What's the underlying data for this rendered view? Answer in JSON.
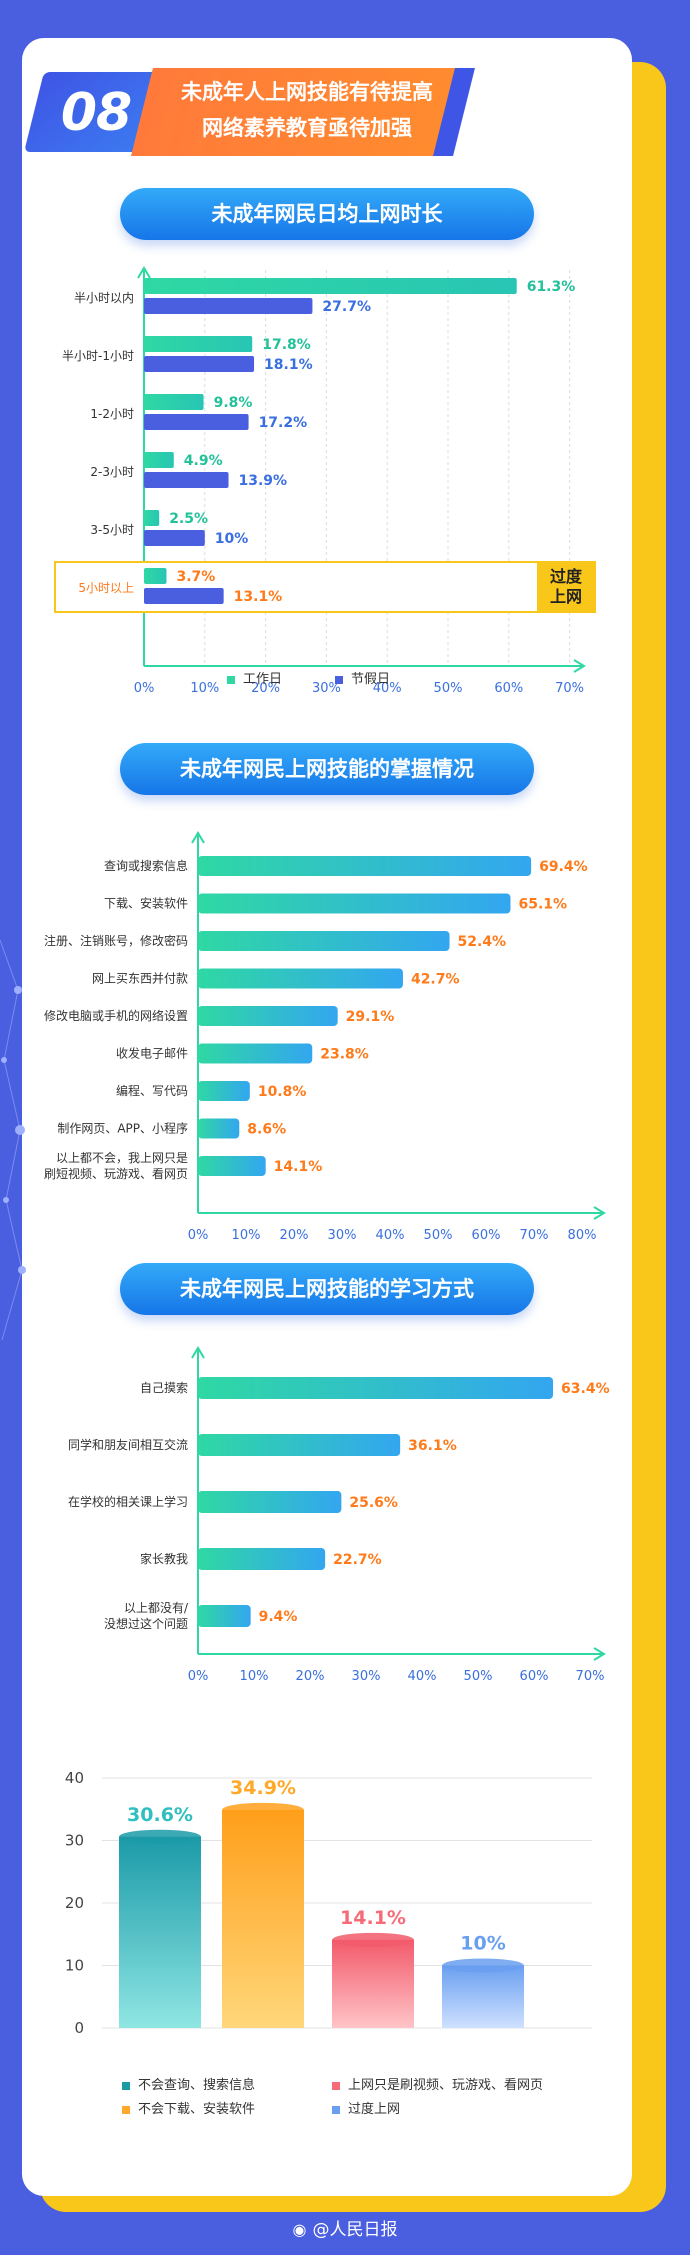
{
  "header": {
    "number": "08",
    "title_line1": "未成年人上网技能有待提高",
    "title_line2": "网络素养教育亟待加强"
  },
  "colors": {
    "green": "#2fd8a3",
    "blue": "#4a5ee0",
    "orange": "#ff8a1a",
    "accent": "#33b5f5"
  },
  "chart_data": [
    {
      "type": "bar",
      "orientation": "horizontal",
      "title": "未成年网民日均上网时长",
      "categories": [
        "半小时以内",
        "半小时-1小时",
        "1-2小时",
        "2-3小时",
        "3-5小时",
        "5小时以上"
      ],
      "series": [
        {
          "name": "工作日",
          "values": [
            61.3,
            17.8,
            9.8,
            4.9,
            2.5,
            3.7
          ],
          "labels": [
            "61.3%",
            "17.8%",
            "9.8%",
            "4.9%",
            "2.5%",
            "3.7%"
          ]
        },
        {
          "name": "节假日",
          "values": [
            27.7,
            18.1,
            17.2,
            13.9,
            10,
            13.1
          ],
          "labels": [
            "27.7%",
            "18.1%",
            "17.2%",
            "13.9%",
            "10%",
            "13.1%"
          ]
        }
      ],
      "xticks": [
        "0%",
        "10%",
        "20%",
        "30%",
        "40%",
        "50%",
        "60%",
        "70%"
      ],
      "xlim": [
        0,
        70
      ],
      "highlight": {
        "category": "5小时以上",
        "tag_line1": "过度",
        "tag_line2": "上网"
      }
    },
    {
      "type": "bar",
      "orientation": "horizontal",
      "title": "未成年网民上网技能的掌握情况",
      "categories": [
        "查询或搜索信息",
        "下载、安装软件",
        "注册、注销账号，修改密码",
        "网上买东西并付款",
        "修改电脑或手机的网络设置",
        "收发电子邮件",
        "编程、写代码",
        "制作网页、APP、小程序",
        [
          "以上都不会，我上网只是",
          "刷短视频、玩游戏、看网页"
        ]
      ],
      "values": [
        69.4,
        65.1,
        52.4,
        42.7,
        29.1,
        23.8,
        10.8,
        8.6,
        14.1
      ],
      "labels": [
        "69.4%",
        "65.1%",
        "52.4%",
        "42.7%",
        "29.1%",
        "23.8%",
        "10.8%",
        "8.6%",
        "14.1%"
      ],
      "xticks": [
        "0%",
        "10%",
        "20%",
        "30%",
        "40%",
        "50%",
        "60%",
        "70%",
        "80%"
      ],
      "xlim": [
        0,
        80
      ]
    },
    {
      "type": "bar",
      "orientation": "horizontal",
      "title": "未成年网民上网技能的学习方式",
      "categories": [
        "自己摸索",
        "同学和朋友间相互交流",
        "在学校的相关课上学习",
        "家长教我",
        [
          "以上都没有/",
          "没想过这个问题"
        ]
      ],
      "values": [
        63.4,
        36.1,
        25.6,
        22.7,
        9.4
      ],
      "labels": [
        "63.4%",
        "36.1%",
        "25.6%",
        "22.7%",
        "9.4%"
      ],
      "xticks": [
        "0%",
        "10%",
        "20%",
        "30%",
        "40%",
        "50%",
        "60%",
        "70%"
      ],
      "xlim": [
        0,
        70
      ]
    },
    {
      "type": "bar",
      "categories": [
        "不会查询、搜索信息",
        "不会下载、安装软件",
        "上网只是刷视频、玩游戏、看网页",
        "过度上网"
      ],
      "values": [
        30.6,
        34.9,
        14.1,
        10
      ],
      "labels": [
        "30.6%",
        "34.9%",
        "14.1%",
        "10%"
      ],
      "yticks": [
        "0",
        "10",
        "20",
        "30",
        "40"
      ],
      "ylim": [
        0,
        40
      ],
      "colors": [
        "#2fbfc0",
        "#ffa92a",
        "#f56c78",
        "#6a9ff0"
      ]
    }
  ],
  "footer": {
    "weibo_icon": "weibo-icon",
    "text": "@人民日报"
  }
}
